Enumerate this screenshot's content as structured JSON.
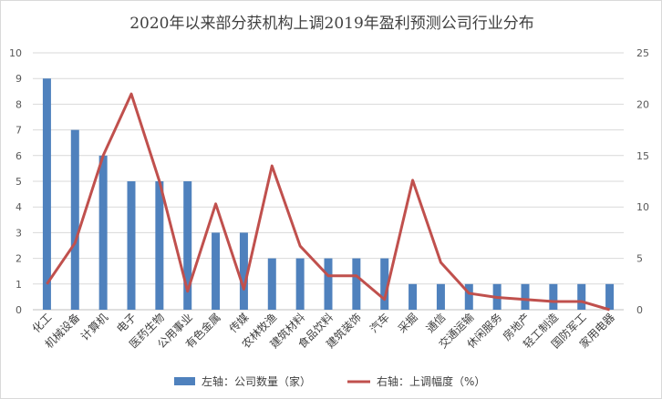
{
  "chart_data": {
    "type": "bar",
    "title": "2020年以来部分获机构上调2019年盈利预测公司行业分布",
    "categories": [
      "化工",
      "机械设备",
      "计算机",
      "电子",
      "医药生物",
      "公用事业",
      "有色金属",
      "传媒",
      "农林牧渔",
      "建筑材料",
      "食品饮料",
      "建筑装饰",
      "汽车",
      "采掘",
      "通信",
      "交通运输",
      "休闲服务",
      "房地产",
      "轻工制造",
      "国防军工",
      "家用电器"
    ],
    "series": [
      {
        "name": "左轴：公司数量（家）",
        "type": "bar",
        "axis": "left",
        "color": "#4f81bd",
        "values": [
          9,
          7,
          6,
          5,
          5,
          5,
          3,
          3,
          2,
          2,
          2,
          2,
          2,
          1,
          1,
          1,
          1,
          1,
          1,
          1,
          1
        ]
      },
      {
        "name": "右轴：上调幅度（%）",
        "type": "line",
        "axis": "right",
        "color": "#c0504d",
        "values": [
          2.5,
          6.5,
          15,
          21,
          12.5,
          1.8,
          10.3,
          2,
          14,
          6.2,
          3.3,
          3.3,
          1,
          12.6,
          4.6,
          1.6,
          1.2,
          1,
          0.8,
          0.8,
          0
        ]
      }
    ],
    "y_left": {
      "min": 0,
      "max": 10,
      "ticks": [
        0,
        1,
        2,
        3,
        4,
        5,
        6,
        7,
        8,
        9,
        10
      ]
    },
    "y_right": {
      "min": 0,
      "max": 25,
      "ticks": [
        0,
        5,
        10,
        15,
        20,
        25
      ]
    },
    "grid": true,
    "legend": "bottom"
  }
}
